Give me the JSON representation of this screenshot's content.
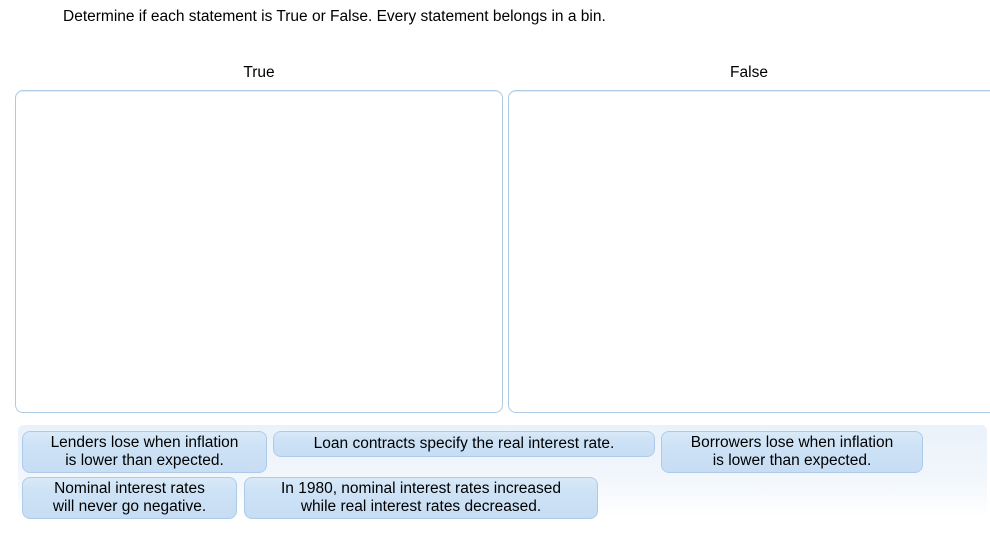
{
  "instruction": "Determine if each statement is True or False. Every statement belongs in a bin.",
  "bins": [
    {
      "label": "True"
    },
    {
      "label": "False"
    }
  ],
  "statements": [
    {
      "line1": "Lenders lose when inflation",
      "line2": "is lower than expected."
    },
    {
      "line1": "Loan contracts specify the real interest rate.",
      "line2": ""
    },
    {
      "line1": "Borrowers lose when inflation",
      "line2": "is lower than expected."
    },
    {
      "line1": "Nominal interest rates",
      "line2": "will never go negative."
    },
    {
      "line1": "In 1980, nominal interest rates increased",
      "line2": "while real interest rates decreased."
    }
  ],
  "colors": {
    "chip_fill": "#cde2f6",
    "chip_border": "#adcbe9",
    "bin_border": "#aecbe6",
    "tray_background": "#eaf1fa",
    "text": "#000000"
  }
}
